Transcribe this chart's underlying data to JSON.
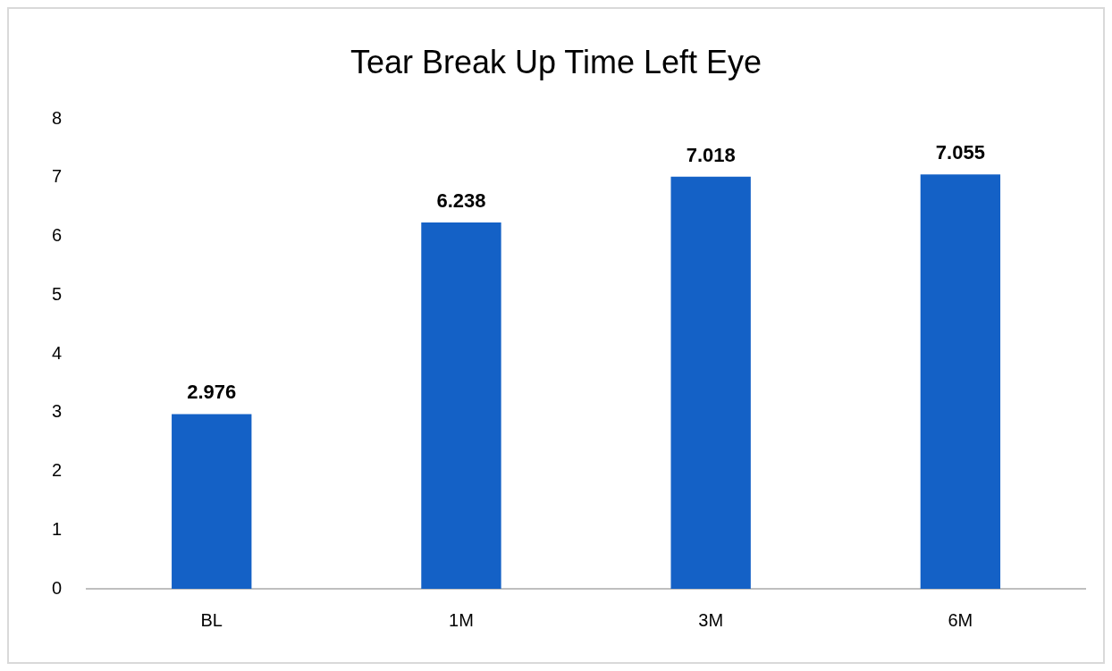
{
  "chart_data": {
    "type": "bar",
    "title": "Tear Break Up Time Left Eye",
    "categories": [
      "BL",
      "1M",
      "3M",
      "6M"
    ],
    "values": [
      2.976,
      6.238,
      7.018,
      7.055
    ],
    "color": "#1461c6",
    "ylim": [
      0,
      8
    ],
    "yticks": [
      0,
      1,
      2,
      3,
      4,
      5,
      6,
      7,
      8
    ],
    "grid": false,
    "data_labels": true
  }
}
